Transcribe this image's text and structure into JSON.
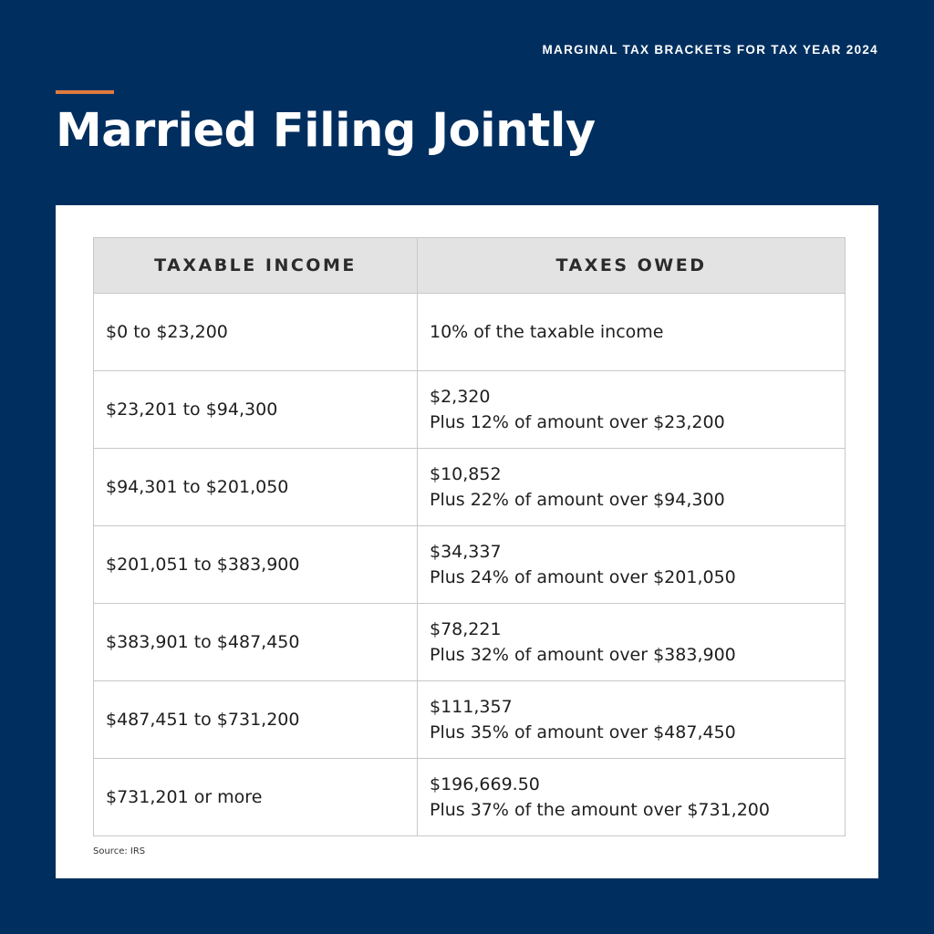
{
  "header": {
    "eyebrow": "MARGINAL TAX BRACKETS FOR TAX YEAR 2024",
    "title": "Married Filing Jointly"
  },
  "colors": {
    "background": "#002f5f",
    "accent": "#e07a3f",
    "header_row": "#e3e3e3"
  },
  "table": {
    "columns": [
      "TAXABLE INCOME",
      "TAXES OWED"
    ],
    "rows": [
      {
        "income": "$0 to $23,200",
        "base": "10% of the taxable income",
        "plus": ""
      },
      {
        "income": "$23,201 to $94,300",
        "base": "$2,320",
        "plus": "Plus 12% of amount over $23,200"
      },
      {
        "income": "$94,301 to $201,050",
        "base": "$10,852",
        "plus": "Plus 22% of amount over $94,300"
      },
      {
        "income": "$201,051 to $383,900",
        "base": "$34,337",
        "plus": "Plus 24% of amount over $201,050"
      },
      {
        "income": "$383,901 to $487,450",
        "base": "$78,221",
        "plus": "Plus 32% of amount over $383,900"
      },
      {
        "income": "$487,451 to $731,200",
        "base": "$111,357",
        "plus": "Plus 35% of amount over $487,450"
      },
      {
        "income": "$731,201 or more",
        "base": "$196,669.50",
        "plus": "Plus 37% of the amount over $731,200"
      }
    ]
  },
  "source": "Source: IRS"
}
